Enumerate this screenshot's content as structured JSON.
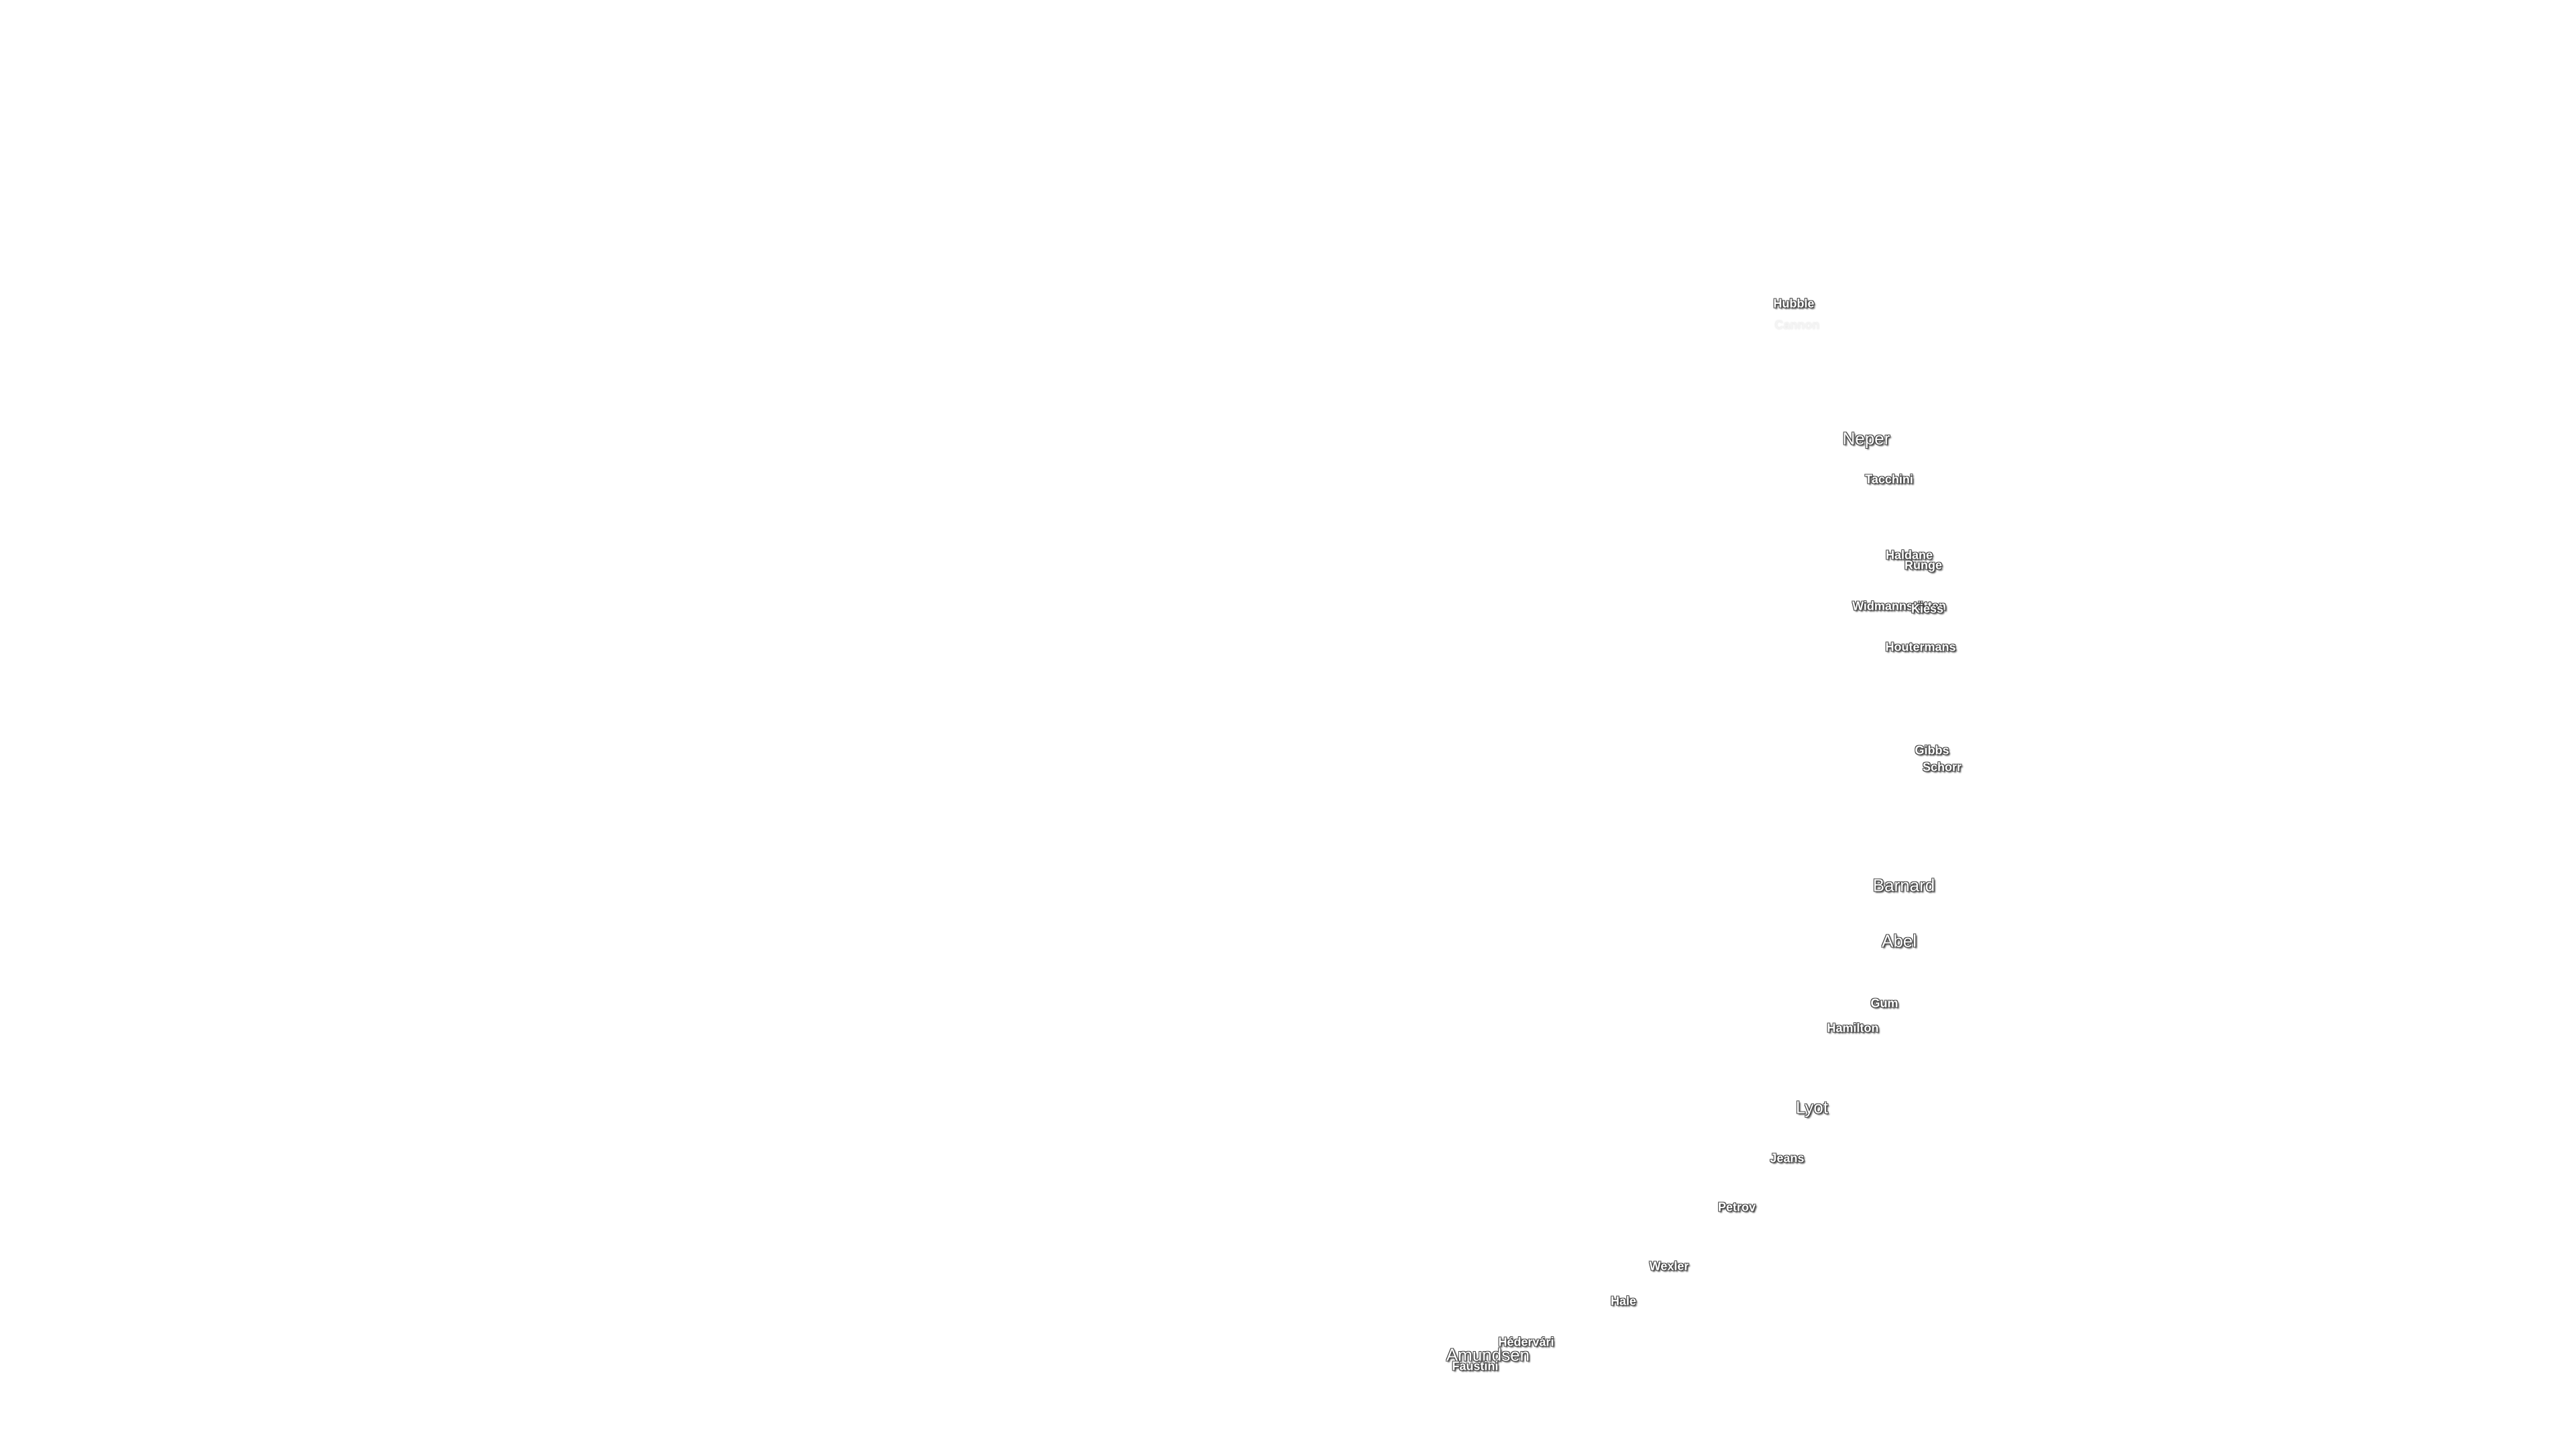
{
  "labels": [
    {
      "text": "Hubble"
    },
    {
      "text": "Cannon"
    },
    {
      "text": "Neper"
    },
    {
      "text": "Tacchini"
    },
    {
      "text": "Haldane"
    },
    {
      "text": "Runge"
    },
    {
      "text": "Widmannstätten"
    },
    {
      "text": "Kiess"
    },
    {
      "text": "Houtermans"
    },
    {
      "text": "Gibbs"
    },
    {
      "text": "Schorr"
    },
    {
      "text": "Barnard"
    },
    {
      "text": "Abel"
    },
    {
      "text": "Gum"
    },
    {
      "text": "Hamilton"
    },
    {
      "text": "Lyot"
    },
    {
      "text": "Jeans"
    },
    {
      "text": "Petrov"
    },
    {
      "text": "Wexler"
    },
    {
      "text": "Hale"
    },
    {
      "text": "Hédervári"
    },
    {
      "text": "Amundsen"
    },
    {
      "text": "Faustini"
    }
  ]
}
